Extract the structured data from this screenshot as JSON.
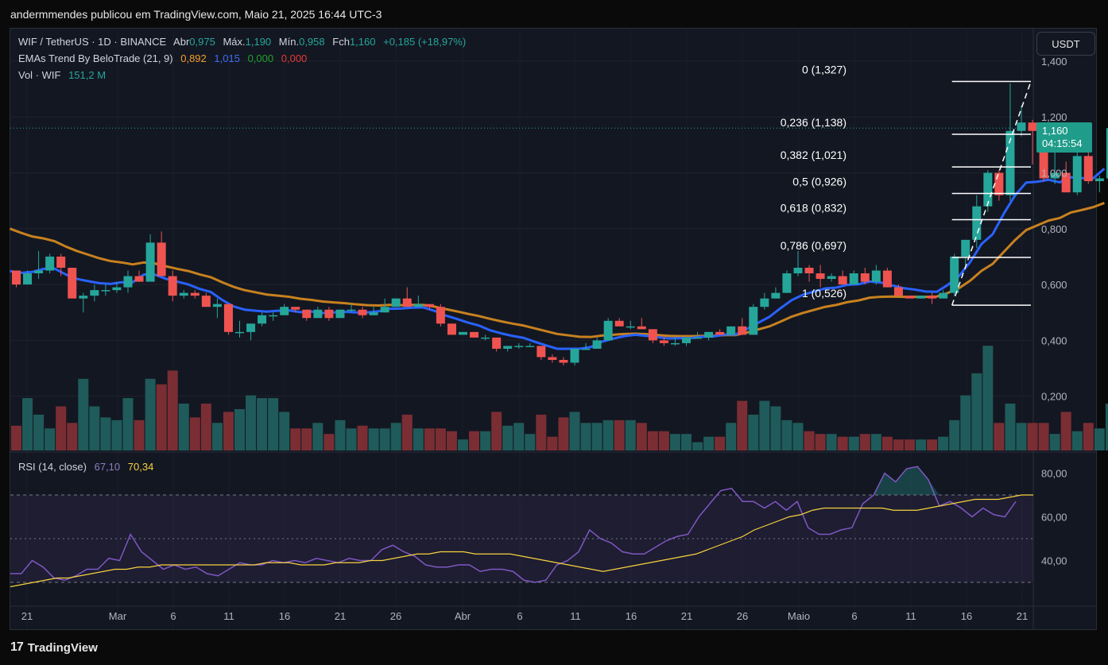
{
  "header": {
    "text": "andermmendes publicou em TradingView.com, Maio 21, 2025 16:44 UTC-3"
  },
  "currency_button": "USDT",
  "legend": {
    "symbol": "WIF / TetherUS · 1D · BINANCE",
    "open_label": "Abr",
    "open": "0,975",
    "high_label": "Máx.",
    "high": "1,190",
    "low_label": "Mín.",
    "low": "0,958",
    "close_label": "Fch",
    "close": "1,160",
    "change": "+0,185 (+18,97%)",
    "ema_name": "EMAs Trend By BeloTrade (21, 9)",
    "ema_vals": [
      "0,892",
      "1,015",
      "0,000",
      "0,000"
    ],
    "vol_name": "Vol · WIF",
    "vol_val": "151,2 M",
    "rsi_name": "RSI (14, close)",
    "rsi_vals": [
      "67,10",
      "70,34"
    ]
  },
  "price_tag": {
    "price": "1,160",
    "countdown": "04:15:54"
  },
  "footer": {
    "brand": "TradingView",
    "logo": "17"
  },
  "colors": {
    "up": "#26a69a",
    "down": "#ef5350",
    "ema_fast": "#2962ff",
    "ema_slow": "#c8811f",
    "rsi": "#7e57c2",
    "rsi_ma": "#f7d23e",
    "vol_up": "#1f5b5a",
    "vol_down": "#7a2e33"
  },
  "chart_data": [
    {
      "type": "candlestick",
      "title": "WIF / TetherUS · 1D · BINANCE",
      "x_ticks": [
        "21",
        "Mar",
        "6",
        "11",
        "16",
        "21",
        "26",
        "Abr",
        "6",
        "11",
        "16",
        "21",
        "26",
        "Maio",
        "6",
        "11",
        "16",
        "21"
      ],
      "y_ticks": [
        "0,200",
        "0,400",
        "0,600",
        "0,800",
        "1,000",
        "1,200",
        "1,400"
      ],
      "ylim": [
        0,
        1.4
      ],
      "last_price": 1.16,
      "candles": [
        [
          0.65,
          0.65,
          0.59,
          0.6
        ],
        [
          0.6,
          0.65,
          0.6,
          0.64
        ],
        [
          0.64,
          0.72,
          0.62,
          0.65
        ],
        [
          0.65,
          0.71,
          0.64,
          0.7
        ],
        [
          0.7,
          0.71,
          0.63,
          0.66
        ],
        [
          0.66,
          0.66,
          0.56,
          0.55
        ],
        [
          0.55,
          0.57,
          0.5,
          0.56
        ],
        [
          0.56,
          0.6,
          0.54,
          0.58
        ],
        [
          0.58,
          0.6,
          0.56,
          0.58
        ],
        [
          0.58,
          0.61,
          0.57,
          0.59
        ],
        [
          0.59,
          0.65,
          0.57,
          0.63
        ],
        [
          0.63,
          0.65,
          0.61,
          0.61
        ],
        [
          0.61,
          0.78,
          0.61,
          0.75
        ],
        [
          0.75,
          0.79,
          0.63,
          0.63
        ],
        [
          0.63,
          0.65,
          0.54,
          0.56
        ],
        [
          0.56,
          0.58,
          0.55,
          0.57
        ],
        [
          0.57,
          0.58,
          0.55,
          0.56
        ],
        [
          0.56,
          0.57,
          0.52,
          0.52
        ],
        [
          0.52,
          0.55,
          0.48,
          0.53
        ],
        [
          0.53,
          0.53,
          0.42,
          0.43
        ],
        [
          0.43,
          0.47,
          0.41,
          0.43
        ],
        [
          0.43,
          0.46,
          0.4,
          0.46
        ],
        [
          0.46,
          0.5,
          0.45,
          0.49
        ],
        [
          0.49,
          0.5,
          0.47,
          0.49
        ],
        [
          0.49,
          0.53,
          0.49,
          0.52
        ],
        [
          0.52,
          0.52,
          0.5,
          0.51
        ],
        [
          0.51,
          0.51,
          0.47,
          0.48
        ],
        [
          0.48,
          0.52,
          0.48,
          0.51
        ],
        [
          0.51,
          0.52,
          0.47,
          0.48
        ],
        [
          0.48,
          0.51,
          0.48,
          0.51
        ],
        [
          0.51,
          0.53,
          0.5,
          0.51
        ],
        [
          0.51,
          0.52,
          0.48,
          0.49
        ],
        [
          0.49,
          0.52,
          0.49,
          0.5
        ],
        [
          0.5,
          0.55,
          0.5,
          0.52
        ],
        [
          0.52,
          0.55,
          0.52,
          0.55
        ],
        [
          0.55,
          0.59,
          0.53,
          0.52
        ],
        [
          0.52,
          0.56,
          0.52,
          0.53
        ],
        [
          0.53,
          0.53,
          0.51,
          0.52
        ],
        [
          0.52,
          0.53,
          0.45,
          0.46
        ],
        [
          0.46,
          0.46,
          0.42,
          0.42
        ],
        [
          0.42,
          0.43,
          0.42,
          0.43
        ],
        [
          0.43,
          0.43,
          0.41,
          0.41
        ],
        [
          0.41,
          0.42,
          0.4,
          0.41
        ],
        [
          0.41,
          0.41,
          0.36,
          0.37
        ],
        [
          0.37,
          0.38,
          0.36,
          0.38
        ],
        [
          0.38,
          0.39,
          0.37,
          0.38
        ],
        [
          0.38,
          0.39,
          0.38,
          0.38
        ],
        [
          0.38,
          0.38,
          0.33,
          0.34
        ],
        [
          0.34,
          0.35,
          0.32,
          0.33
        ],
        [
          0.33,
          0.34,
          0.31,
          0.32
        ],
        [
          0.32,
          0.37,
          0.31,
          0.37
        ],
        [
          0.37,
          0.39,
          0.37,
          0.37
        ],
        [
          0.37,
          0.41,
          0.37,
          0.4
        ],
        [
          0.4,
          0.48,
          0.4,
          0.47
        ],
        [
          0.47,
          0.48,
          0.46,
          0.45
        ],
        [
          0.45,
          0.47,
          0.44,
          0.45
        ],
        [
          0.45,
          0.48,
          0.44,
          0.44
        ],
        [
          0.44,
          0.44,
          0.39,
          0.4
        ],
        [
          0.4,
          0.42,
          0.38,
          0.39
        ],
        [
          0.39,
          0.41,
          0.38,
          0.39
        ],
        [
          0.39,
          0.41,
          0.38,
          0.41
        ],
        [
          0.41,
          0.43,
          0.41,
          0.41
        ],
        [
          0.41,
          0.43,
          0.4,
          0.43
        ],
        [
          0.43,
          0.44,
          0.42,
          0.42
        ],
        [
          0.42,
          0.45,
          0.42,
          0.45
        ],
        [
          0.45,
          0.48,
          0.42,
          0.42
        ],
        [
          0.42,
          0.53,
          0.42,
          0.52
        ],
        [
          0.52,
          0.57,
          0.51,
          0.55
        ],
        [
          0.55,
          0.59,
          0.55,
          0.57
        ],
        [
          0.57,
          0.65,
          0.57,
          0.64
        ],
        [
          0.64,
          0.72,
          0.63,
          0.66
        ],
        [
          0.66,
          0.67,
          0.61,
          0.64
        ],
        [
          0.64,
          0.67,
          0.59,
          0.62
        ],
        [
          0.62,
          0.64,
          0.61,
          0.63
        ],
        [
          0.63,
          0.65,
          0.6,
          0.6
        ],
        [
          0.6,
          0.65,
          0.6,
          0.64
        ],
        [
          0.64,
          0.66,
          0.6,
          0.61
        ],
        [
          0.61,
          0.67,
          0.6,
          0.65
        ],
        [
          0.65,
          0.66,
          0.59,
          0.59
        ],
        [
          0.59,
          0.6,
          0.56,
          0.56
        ],
        [
          0.56,
          0.56,
          0.55,
          0.55
        ],
        [
          0.55,
          0.56,
          0.55,
          0.56
        ],
        [
          0.56,
          0.57,
          0.53,
          0.55
        ],
        [
          0.55,
          0.58,
          0.55,
          0.57
        ],
        [
          0.57,
          0.71,
          0.56,
          0.7
        ],
        [
          0.7,
          0.76,
          0.67,
          0.76
        ],
        [
          0.76,
          0.92,
          0.73,
          0.88
        ],
        [
          0.88,
          1.01,
          0.86,
          1.0
        ],
        [
          1.0,
          1.01,
          0.9,
          0.92
        ],
        [
          0.92,
          1.32,
          0.9,
          1.15
        ],
        [
          1.15,
          1.24,
          1.13,
          1.18
        ],
        [
          1.18,
          1.19,
          1.03,
          1.15
        ],
        [
          1.15,
          1.17,
          0.97,
          0.98
        ],
        [
          0.98,
          1.12,
          0.96,
          1.0
        ],
        [
          1.0,
          1.04,
          0.93,
          0.93
        ],
        [
          0.93,
          1.09,
          0.92,
          1.06
        ],
        [
          1.06,
          1.1,
          0.96,
          0.97
        ],
        [
          0.97,
          0.99,
          0.93,
          0.98
        ],
        [
          0.98,
          1.19,
          0.96,
          1.16
        ]
      ],
      "ema_fast": [
        0.648,
        0.642,
        0.645,
        0.656,
        0.657,
        0.636,
        0.62,
        0.612,
        0.605,
        0.602,
        0.608,
        0.608,
        0.636,
        0.635,
        0.62,
        0.61,
        0.6,
        0.584,
        0.573,
        0.545,
        0.522,
        0.51,
        0.506,
        0.503,
        0.506,
        0.507,
        0.501,
        0.503,
        0.498,
        0.5,
        0.502,
        0.5,
        0.5,
        0.504,
        0.513,
        0.514,
        0.517,
        0.518,
        0.506,
        0.489,
        0.477,
        0.464,
        0.453,
        0.436,
        0.425,
        0.416,
        0.409,
        0.395,
        0.382,
        0.37,
        0.37,
        0.37,
        0.376,
        0.395,
        0.406,
        0.415,
        0.42,
        0.416,
        0.411,
        0.407,
        0.408,
        0.408,
        0.413,
        0.414,
        0.421,
        0.421,
        0.441,
        0.463,
        0.484,
        0.515,
        0.544,
        0.563,
        0.575,
        0.586,
        0.589,
        0.599,
        0.601,
        0.611,
        0.607,
        0.597,
        0.587,
        0.582,
        0.575,
        0.574,
        0.599,
        0.631,
        0.681,
        0.745,
        0.78,
        0.854,
        0.919,
        0.965,
        0.968,
        0.975,
        0.966,
        0.984,
        0.981,
        0.98,
        1.015
      ],
      "ema_slow": [
        0.8,
        0.785,
        0.772,
        0.765,
        0.755,
        0.736,
        0.72,
        0.707,
        0.694,
        0.684,
        0.679,
        0.672,
        0.679,
        0.675,
        0.665,
        0.656,
        0.648,
        0.636,
        0.626,
        0.608,
        0.592,
        0.58,
        0.572,
        0.564,
        0.56,
        0.556,
        0.549,
        0.545,
        0.539,
        0.536,
        0.533,
        0.529,
        0.526,
        0.525,
        0.527,
        0.526,
        0.527,
        0.527,
        0.521,
        0.512,
        0.504,
        0.495,
        0.487,
        0.477,
        0.468,
        0.46,
        0.453,
        0.443,
        0.433,
        0.423,
        0.418,
        0.413,
        0.412,
        0.417,
        0.42,
        0.423,
        0.424,
        0.422,
        0.419,
        0.416,
        0.415,
        0.415,
        0.416,
        0.416,
        0.419,
        0.419,
        0.428,
        0.439,
        0.45,
        0.467,
        0.485,
        0.498,
        0.509,
        0.52,
        0.527,
        0.537,
        0.543,
        0.553,
        0.556,
        0.557,
        0.556,
        0.556,
        0.556,
        0.557,
        0.57,
        0.587,
        0.614,
        0.649,
        0.674,
        0.717,
        0.759,
        0.795,
        0.812,
        0.829,
        0.838,
        0.858,
        0.867,
        0.877,
        0.892
      ],
      "fibonacci": [
        {
          "label": "0 (1,327)",
          "value": 1.327
        },
        {
          "label": "0,236 (1,138)",
          "value": 1.138
        },
        {
          "label": "0,382 (1,021)",
          "value": 1.021
        },
        {
          "label": "0,5 (0,926)",
          "value": 0.926
        },
        {
          "label": "0,618 (0,832)",
          "value": 0.832
        },
        {
          "label": "0,786 (0,697)",
          "value": 0.697
        },
        {
          "label": "1 (0,526)",
          "value": 0.526
        }
      ],
      "fib_start_bar": 84
    },
    {
      "type": "bar",
      "title": "Vol · WIF",
      "values": [
        0.09,
        0.19,
        0.13,
        0.08,
        0.16,
        0.1,
        0.26,
        0.16,
        0.12,
        0.11,
        0.19,
        0.11,
        0.26,
        0.24,
        0.29,
        0.17,
        0.12,
        0.17,
        0.1,
        0.14,
        0.15,
        0.2,
        0.19,
        0.19,
        0.14,
        0.08,
        0.08,
        0.1,
        0.06,
        0.11,
        0.08,
        0.09,
        0.08,
        0.08,
        0.1,
        0.13,
        0.08,
        0.08,
        0.08,
        0.07,
        0.04,
        0.07,
        0.07,
        0.14,
        0.09,
        0.1,
        0.06,
        0.13,
        0.05,
        0.12,
        0.14,
        0.1,
        0.1,
        0.11,
        0.11,
        0.11,
        0.1,
        0.07,
        0.07,
        0.06,
        0.06,
        0.03,
        0.05,
        0.05,
        0.1,
        0.18,
        0.13,
        0.18,
        0.16,
        0.11,
        0.1,
        0.07,
        0.06,
        0.06,
        0.05,
        0.05,
        0.06,
        0.06,
        0.05,
        0.04,
        0.04,
        0.04,
        0.04,
        0.05,
        0.11,
        0.2,
        0.28,
        0.38,
        0.1,
        0.17,
        0.1,
        0.1,
        0.1,
        0.06,
        0.14,
        0.07,
        0.1,
        0.08,
        0.17
      ]
    },
    {
      "type": "line",
      "title": "RSI (14, close)",
      "y_ticks": [
        "40,00",
        "60,00",
        "80,00"
      ],
      "ylim": [
        26,
        86
      ],
      "levels": [
        70,
        50,
        30
      ],
      "series": [
        {
          "values": [
            34,
            34,
            40,
            37,
            32,
            31,
            33,
            36,
            36,
            41,
            40,
            52,
            44,
            40,
            36,
            38,
            36,
            37,
            34,
            33,
            36,
            39,
            38,
            38,
            40,
            39,
            40,
            39,
            41,
            40,
            39,
            41,
            40,
            40,
            45,
            47,
            44,
            42,
            38,
            37,
            37,
            38,
            38,
            35,
            36,
            36,
            35,
            31,
            30,
            31,
            38,
            40,
            44,
            54,
            50,
            48,
            44,
            43,
            43,
            46,
            49,
            51,
            52,
            60,
            66,
            72,
            73,
            67,
            67,
            64,
            67,
            63,
            67,
            55,
            52,
            52,
            54,
            55,
            66,
            70,
            80,
            76,
            82,
            83,
            77,
            65,
            67,
            64,
            60,
            64,
            61,
            60,
            67
          ]
        },
        {
          "values": [
            28,
            29,
            30,
            31,
            32,
            32,
            33,
            34,
            35,
            36,
            36,
            37,
            37,
            38,
            38,
            38,
            38,
            38,
            38,
            38,
            38,
            38,
            39,
            39,
            39,
            38,
            38,
            38,
            39,
            39,
            39,
            40,
            40,
            41,
            42,
            43,
            43,
            44,
            44,
            44,
            43,
            43,
            43,
            43,
            42,
            41,
            40,
            39,
            38,
            37,
            36,
            35,
            36,
            37,
            38,
            39,
            40,
            41,
            42,
            43,
            45,
            47,
            49,
            51,
            54,
            56,
            58,
            60,
            61,
            63,
            64,
            64,
            64,
            64,
            64,
            64,
            63,
            63,
            63,
            64,
            65,
            66,
            67,
            68,
            68,
            68,
            69,
            70,
            70
          ]
        }
      ]
    }
  ]
}
